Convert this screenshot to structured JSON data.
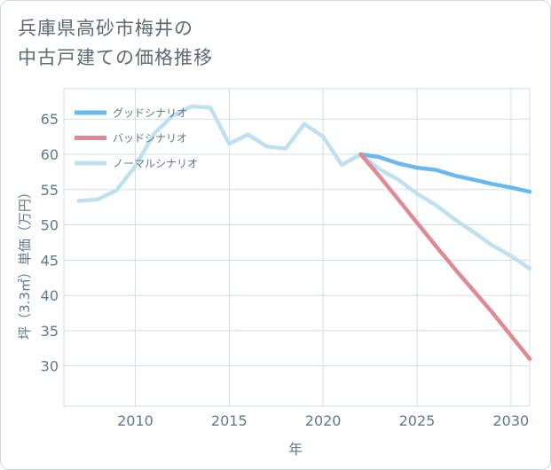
{
  "title_line1": "兵庫県高砂市梅井の",
  "title_line2": "中古戸建ての価格推移",
  "chart_data": {
    "type": "line",
    "xlabel": "年",
    "ylabel": "坪（3.3㎡）単価（万円）",
    "xlim": [
      2006.2,
      2031
    ],
    "ylim": [
      24.3,
      69.3
    ],
    "xticks": [
      2010,
      2015,
      2020,
      2025,
      2030
    ],
    "yticks": [
      30,
      35,
      40,
      45,
      50,
      55,
      60,
      65
    ],
    "grid": true,
    "legend_position": "top-left",
    "series": [
      {
        "name": "グッドシナリオ",
        "color": "#6ab9ee",
        "x": [
          2022,
          2023,
          2024,
          2025,
          2026,
          2027,
          2028,
          2029,
          2030,
          2031
        ],
        "y": [
          60.0,
          59.6,
          58.7,
          58.1,
          57.8,
          57.0,
          56.4,
          55.8,
          55.3,
          54.7
        ]
      },
      {
        "name": "バッドシナリオ",
        "color": "#df8a92",
        "x": [
          2022,
          2023,
          2024,
          2025,
          2026,
          2027,
          2028,
          2029,
          2030,
          2031
        ],
        "y": [
          60.0,
          56.9,
          53.6,
          50.3,
          47.0,
          43.8,
          40.7,
          37.6,
          34.3,
          31.0
        ]
      },
      {
        "name": "ノーマルシナリオ",
        "color": "#bfe1ef",
        "x": [
          2007,
          2008,
          2009,
          2010,
          2011,
          2012,
          2013,
          2014,
          2015,
          2016,
          2017,
          2018,
          2019,
          2020,
          2021,
          2022,
          2023,
          2024,
          2025,
          2026,
          2027,
          2028,
          2029,
          2030,
          2031
        ],
        "y": [
          53.4,
          53.6,
          54.9,
          58.3,
          62.9,
          65.5,
          66.8,
          66.6,
          61.5,
          62.8,
          61.1,
          60.8,
          64.3,
          62.5,
          58.5,
          60.0,
          57.9,
          56.4,
          54.4,
          52.8,
          50.8,
          49.0,
          47.1,
          45.6,
          43.8
        ]
      }
    ]
  }
}
